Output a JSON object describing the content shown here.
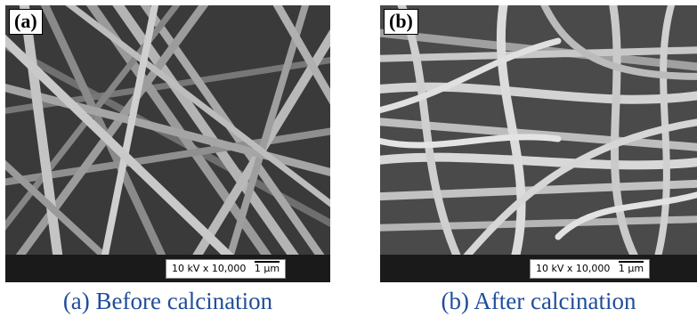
{
  "panels": [
    {
      "label": "(a)",
      "caption": "(a) Before calcination",
      "scale_bar": {
        "voltage": "10 kV",
        "magnification": "x 10,000",
        "scale": "1 µm"
      }
    },
    {
      "label": "(b)",
      "caption": "(b) After calcination",
      "scale_bar": {
        "voltage": "10 kV",
        "magnification": "x 10,000",
        "scale": "1 µm"
      }
    }
  ],
  "colors": {
    "caption": "#1f4e9b",
    "sem_background": "#3b3b3b",
    "data_bar": "#1a1a1a"
  }
}
